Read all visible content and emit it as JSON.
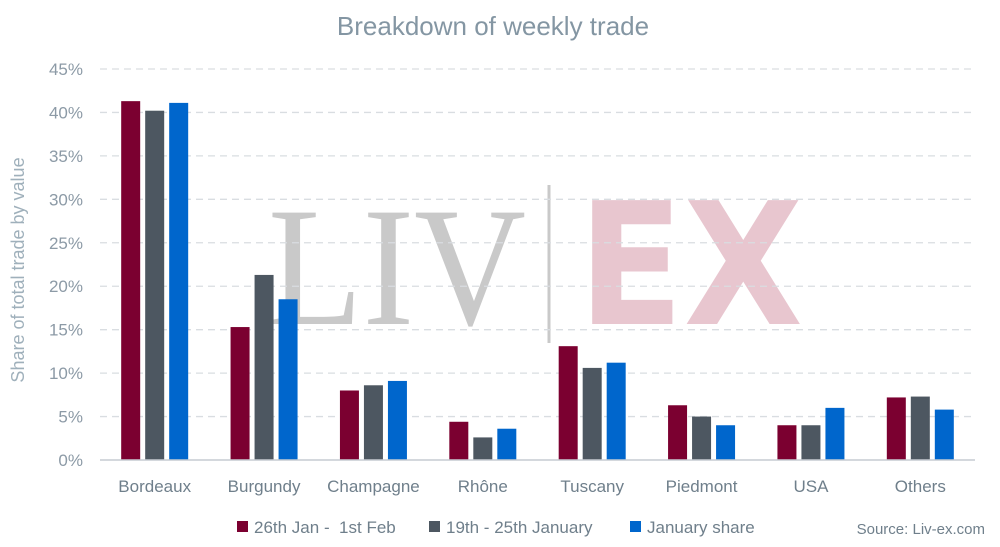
{
  "chart_data": {
    "type": "bar",
    "title": "Breakdown of weekly trade",
    "ylabel": "Share of total trade by value",
    "xlabel": "",
    "ylim": [
      0,
      45
    ],
    "yticks": [
      "0%",
      "5%",
      "10%",
      "15%",
      "20%",
      "25%",
      "30%",
      "35%",
      "40%",
      "45%"
    ],
    "grid": true,
    "legend_position": "bottom",
    "categories": [
      "Bordeaux",
      "Burgundy",
      "Champagne",
      "Rhône",
      "Tuscany",
      "Piedmont",
      "USA",
      "Others"
    ],
    "series": [
      {
        "name": "26th Jan -  1st Feb",
        "color": "#7b0030",
        "values": [
          41.3,
          15.3,
          8.0,
          4.4,
          13.1,
          6.3,
          4.0,
          7.2
        ]
      },
      {
        "name": "19th - 25th January",
        "color": "#4d5761",
        "values": [
          40.2,
          21.3,
          8.6,
          2.6,
          10.6,
          5.0,
          4.0,
          7.3
        ]
      },
      {
        "name": "January share",
        "color": "#0066cc",
        "values": [
          41.1,
          18.5,
          9.1,
          3.6,
          11.2,
          4.0,
          6.0,
          5.8
        ]
      }
    ],
    "source": "Source: Liv-ex.com"
  },
  "watermark": {
    "left": "LIV",
    "right": "EX",
    "left_color": "#c9c9c9",
    "right_color": "#e8c6cf"
  }
}
